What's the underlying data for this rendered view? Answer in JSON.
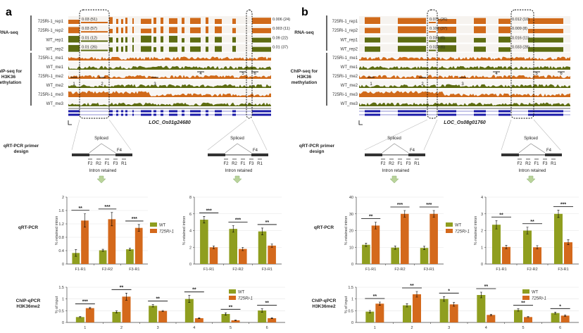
{
  "colors": {
    "wt": "#8f9e1f",
    "mutant": "#d4691c",
    "wt_track": "#5d6c12",
    "mutant_track": "#d06a1a",
    "gene": "#1a1aa8",
    "arrow": "#b9d39a"
  },
  "panels": [
    {
      "label": "a",
      "gene_name": "LOC_Os01g24680",
      "group_labels": {
        "rna": "RNA-seq",
        "chip": "ChIP-seq for H3K36 methylation",
        "primer": "qRT-PCR primer design",
        "qrt": "qRT-PCR",
        "chipq": "ChIP-qPCR H3K36me2"
      },
      "rna_tracks": [
        "725Ri-1_rep1",
        "725Ri-1_rep2",
        "WT_rep1",
        "WT_rep2"
      ],
      "chip_tracks": [
        "725Ri-1_me1",
        "WT_me1",
        "725Ri-1_me2",
        "WT_me2",
        "725Ri-1_me3",
        "WT_me3"
      ],
      "box1_values": [
        "0.03 (51)",
        "0.03 (57)",
        "0.01 (12)",
        "0.01 (26)"
      ],
      "box2_values": [
        "0.006 (24)",
        "0.003 (11)",
        "0.09 (22)",
        "0.01 (37)"
      ],
      "site_labels": [
        "1",
        "2",
        "3",
        "4",
        "5",
        "6"
      ],
      "primer": {
        "spliced": "Spliced",
        "retained": "Intron retained",
        "primers": [
          "F2",
          "R2",
          "F1",
          "F3",
          "R1"
        ],
        "f4": "F4"
      }
    },
    {
      "label": "b",
      "gene_name": "LOC_Os08g01760",
      "group_labels": {
        "rna": "RNA-seq",
        "chip": "ChIP-seq for H3K36 methylation",
        "primer": "qRT-PCR primer design",
        "qrt": "qRT-PCR",
        "chipq": "ChIP-qPCR H3K36me2"
      },
      "rna_tracks": [
        "725Ri-1_rep1",
        "725Ri-1_rep2",
        "WT_rep1",
        "WT_rep2"
      ],
      "chip_tracks": [
        "725Ri-1_me1",
        "WT_me1",
        "725Ri-1_me2",
        "WT_me2",
        "725Ri-1_me3",
        "WT_me3"
      ],
      "box1_values": [
        "0.075 (26)",
        "0.102 (37)",
        "0.031 (6)",
        "0.020 (6)"
      ],
      "box2_values": [
        "0.012 (10)",
        "0.009 (8)",
        "0.016 (11)",
        "0.033 (28)"
      ],
      "site_labels": [
        "1",
        "2",
        "3",
        "4",
        "5",
        "6"
      ],
      "primer": {
        "spliced": "Spliced",
        "retained": "Intron retained",
        "primers": [
          "F2",
          "R2",
          "F1",
          "F3",
          "R1"
        ],
        "f4": "F4"
      }
    }
  ],
  "chart_data": [
    {
      "id": "a-qrt-1",
      "type": "bar",
      "ylabel": "% retained intron",
      "ylim": [
        0,
        2
      ],
      "yticks": [
        "0",
        "0.4",
        "0.8",
        "1.2",
        "1.6",
        "2"
      ],
      "categories": [
        "F1-R1",
        "F2-R2",
        "F3-R1"
      ],
      "series": [
        {
          "name": "WT",
          "values": [
            0.33,
            0.41,
            0.44
          ],
          "errors": [
            0.1,
            0.03,
            0.03
          ]
        },
        {
          "name": "725Ri-1",
          "values": [
            1.3,
            1.34,
            1.08
          ],
          "errors": [
            0.2,
            0.2,
            0.1
          ]
        }
      ],
      "significance": [
        "**",
        "***",
        "***"
      ],
      "legend": "right"
    },
    {
      "id": "a-qrt-2",
      "type": "bar",
      "ylabel": "% retained intron",
      "ylim": [
        0,
        8
      ],
      "yticks": [
        "0",
        "2",
        "4",
        "6",
        "8"
      ],
      "categories": [
        "F1-R1",
        "F2-R2",
        "F3-R1"
      ],
      "series": [
        {
          "values": [
            5.3,
            4.2,
            3.9
          ],
          "errors": [
            0.4,
            0.4,
            0.4
          ]
        },
        {
          "values": [
            2.0,
            1.8,
            2.2
          ],
          "errors": [
            0.15,
            0.2,
            0.2
          ]
        }
      ],
      "significance": [
        "***",
        "***",
        "**"
      ]
    },
    {
      "id": "b-qrt-1",
      "type": "bar",
      "ylabel": "% retained intron",
      "ylim": [
        0,
        40
      ],
      "yticks": [
        "0",
        "10",
        "20",
        "30",
        "40"
      ],
      "categories": [
        "F1-R1",
        "F2-R2",
        "F3-R1"
      ],
      "series": [
        {
          "name": "WT",
          "values": [
            11.5,
            9.8,
            9.6
          ],
          "errors": [
            1,
            1,
            1
          ]
        },
        {
          "name": "725Ri-1",
          "values": [
            23,
            30,
            30
          ],
          "errors": [
            2,
            2,
            2
          ]
        }
      ],
      "significance": [
        "**",
        "***",
        "***"
      ],
      "legend": "right"
    },
    {
      "id": "b-qrt-2",
      "type": "bar",
      "ylabel": "% retained intron",
      "ylim": [
        0,
        4
      ],
      "yticks": [
        "0",
        "1",
        "2",
        "3",
        "4"
      ],
      "categories": [
        "F1-R1",
        "F2-R2",
        "F3-R1"
      ],
      "series": [
        {
          "values": [
            2.35,
            2.0,
            3.0
          ],
          "errors": [
            0.25,
            0.2,
            0.22
          ]
        },
        {
          "values": [
            1.02,
            1.0,
            1.3
          ],
          "errors": [
            0.1,
            0.1,
            0.15
          ]
        }
      ],
      "significance": [
        "**",
        "**",
        "***"
      ]
    },
    {
      "id": "a-chip",
      "type": "bar",
      "ylabel": "% of input",
      "ylim": [
        0,
        1.5
      ],
      "yticks": [
        "0",
        "0.5",
        "1",
        "1.5"
      ],
      "categories": [
        "1",
        "2",
        "3",
        "4",
        "5",
        "6"
      ],
      "series": [
        {
          "name": "WT",
          "values": [
            0.23,
            0.45,
            0.71,
            1.0,
            0.36,
            0.51
          ],
          "errors": [
            0.02,
            0.04,
            0.05,
            0.15,
            0.05,
            0.07
          ]
        },
        {
          "name": "725Ri-1",
          "values": [
            0.61,
            1.1,
            0.49,
            0.18,
            0.09,
            0.18
          ],
          "errors": [
            0.03,
            0.15,
            0.02,
            0.02,
            0.01,
            0.02
          ]
        }
      ],
      "significance": [
        "***",
        "**",
        "**",
        "**",
        "**",
        "**"
      ],
      "legend": "top-right"
    },
    {
      "id": "b-chip",
      "type": "bar",
      "ylabel": "% of input",
      "ylim": [
        0,
        1.5
      ],
      "yticks": [
        "0",
        "0.5",
        "1",
        "1.5"
      ],
      "categories": [
        "1",
        "2",
        "3",
        "4",
        "5",
        "6"
      ],
      "series": [
        {
          "name": "WT",
          "values": [
            0.46,
            0.73,
            1.0,
            1.17,
            0.53,
            0.4
          ],
          "errors": [
            0.05,
            0.07,
            0.1,
            0.12,
            0.05,
            0.04
          ]
        },
        {
          "name": "725Ri-1",
          "values": [
            0.8,
            1.2,
            0.77,
            0.32,
            0.23,
            0.29
          ],
          "errors": [
            0.07,
            0.12,
            0.08,
            0.03,
            0.02,
            0.03
          ]
        }
      ],
      "significance": [
        "**",
        "**",
        "*",
        "**",
        "**",
        "*"
      ],
      "legend": "top-right"
    }
  ]
}
